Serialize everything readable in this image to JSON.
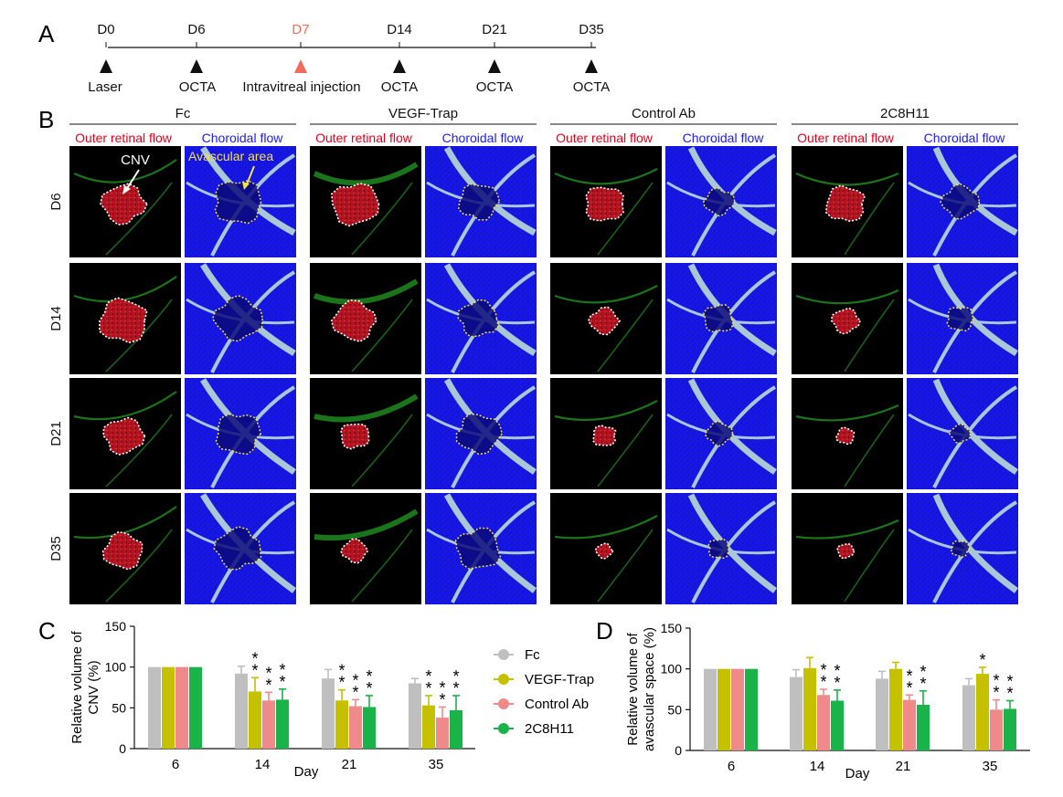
{
  "panel_labels": {
    "a": "A",
    "b": "B",
    "c": "C",
    "d": "D"
  },
  "timeline": {
    "events": [
      {
        "day": "D0",
        "label": "Laser",
        "highlight": false
      },
      {
        "day": "D6",
        "label": "OCTA",
        "highlight": false
      },
      {
        "day": "D7",
        "label": "Intravitreal injection",
        "highlight": true
      },
      {
        "day": "D14",
        "label": "OCTA",
        "highlight": false
      },
      {
        "day": "D21",
        "label": "OCTA",
        "highlight": false
      },
      {
        "day": "D35",
        "label": "OCTA",
        "highlight": false
      }
    ],
    "highlight_color": "#f26b5b"
  },
  "images": {
    "groups": [
      "Fc",
      "VEGF-Trap",
      "Control Ab",
      "2C8H11"
    ],
    "subheaders": {
      "outer": "Outer retinal flow",
      "choroidal": "Choroidal flow"
    },
    "rows": [
      "D6",
      "D14",
      "D21",
      "D35"
    ],
    "annotations": {
      "cnv": "CNV",
      "avascular": "Avascular area"
    },
    "colors": {
      "outer_text": "#e8001c",
      "choroidal_text": "#1a1aff",
      "choroid_bg": "#1616e6",
      "vessel": "#a9c7d6",
      "lesion": "#c81a24",
      "retinal_vessel": "#1f8a1f"
    }
  },
  "legend": {
    "items": [
      {
        "name": "Fc",
        "color": "#bfbfbf"
      },
      {
        "name": "VEGF-Trap",
        "color": "#c5c000"
      },
      {
        "name": "Control Ab",
        "color": "#f08a8a"
      },
      {
        "name": "2C8H11",
        "color": "#19b34a"
      }
    ]
  },
  "chart_data": [
    {
      "type": "bar",
      "panel": "C",
      "title": "",
      "xlabel": "Day",
      "ylabel": "Relative volume of CNV (%)",
      "ylabel_lines": [
        "Relative volume of",
        "CNV (%)"
      ],
      "ylim": [
        0,
        150
      ],
      "yticks": [
        0,
        50,
        100,
        150
      ],
      "categories": [
        "6",
        "14",
        "21",
        "35"
      ],
      "series": [
        {
          "name": "Fc",
          "values": [
            100,
            92,
            86,
            80
          ],
          "errors": [
            0,
            9,
            11,
            6
          ],
          "stars": [
            "",
            "",
            "",
            ""
          ]
        },
        {
          "name": "VEGF-Trap",
          "values": [
            100,
            70,
            59,
            53
          ],
          "errors": [
            0,
            17,
            13,
            12
          ],
          "stars": [
            "",
            "**",
            "**",
            "**"
          ]
        },
        {
          "name": "Control Ab",
          "values": [
            100,
            59,
            52,
            38
          ],
          "errors": [
            0,
            10,
            8,
            13
          ],
          "stars": [
            "",
            "**",
            "**",
            "**"
          ]
        },
        {
          "name": "2C8H11",
          "values": [
            100,
            60,
            51,
            47
          ],
          "errors": [
            0,
            13,
            14,
            18
          ],
          "stars": [
            "",
            "**",
            "**",
            "**"
          ]
        }
      ]
    },
    {
      "type": "bar",
      "panel": "D",
      "title": "",
      "xlabel": "Day",
      "ylabel": "Relative volume of avascular space (%)",
      "ylabel_lines": [
        "Relative volume of",
        "avascular space (%)"
      ],
      "ylim": [
        0,
        150
      ],
      "yticks": [
        0,
        50,
        100,
        150
      ],
      "categories": [
        "6",
        "14",
        "21",
        "35"
      ],
      "series": [
        {
          "name": "Fc",
          "values": [
            100,
            90,
            88,
            80
          ],
          "errors": [
            0,
            9,
            9,
            8
          ],
          "stars": [
            "",
            "",
            "",
            ""
          ]
        },
        {
          "name": "VEGF-Trap",
          "values": [
            100,
            101,
            100,
            94
          ],
          "errors": [
            0,
            13,
            8,
            8
          ],
          "stars": [
            "",
            "",
            "",
            "*"
          ]
        },
        {
          "name": "Control Ab",
          "values": [
            100,
            68,
            62,
            50
          ],
          "errors": [
            0,
            7,
            6,
            12
          ],
          "stars": [
            "",
            "**",
            "**",
            "**"
          ]
        },
        {
          "name": "2C8H11",
          "values": [
            100,
            61,
            56,
            51
          ],
          "errors": [
            0,
            13,
            17,
            10
          ],
          "stars": [
            "",
            "**",
            "**",
            "**"
          ]
        }
      ]
    }
  ]
}
